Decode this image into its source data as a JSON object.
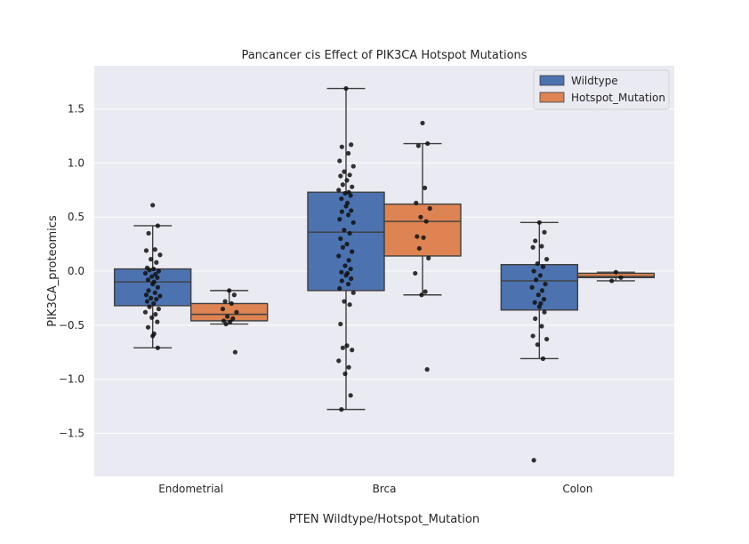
{
  "chart_data": {
    "type": "box",
    "title": "Pancancer cis Effect of PIK3CA Hotspot Mutations",
    "xlabel": "PTEN Wildtype/Hotspot_Mutation",
    "ylabel": "PIK3CA_proteomics",
    "categories": [
      "Endometrial",
      "Brca",
      "Colon"
    ],
    "ylim": [
      -1.9,
      1.9
    ],
    "yticks": [
      -1.5,
      -1.0,
      -0.5,
      0.0,
      0.5,
      1.0,
      1.5
    ],
    "ytick_labels": [
      "−1.5",
      "−1.0",
      "−0.5",
      "0.0",
      "0.5",
      "1.0",
      "1.5"
    ],
    "grid": true,
    "legend_position": "top-right",
    "series": [
      {
        "name": "Wildtype",
        "color": "#4c72b0",
        "boxes": [
          {
            "whisker_low": -0.71,
            "q1": -0.32,
            "median": -0.1,
            "q3": 0.02,
            "whisker_high": 0.42
          },
          {
            "whisker_low": -1.28,
            "q1": -0.18,
            "median": 0.36,
            "q3": 0.73,
            "whisker_high": 1.69
          },
          {
            "whisker_low": -0.81,
            "q1": -0.36,
            "median": -0.09,
            "q3": 0.06,
            "whisker_high": 0.45
          }
        ],
        "points": [
          [
            0.61,
            0.42,
            0.35,
            0.2,
            0.19,
            0.15,
            0.11,
            0.08,
            0.03,
            0.02,
            0.01,
            0.0,
            -0.02,
            -0.03,
            -0.05,
            -0.06,
            -0.08,
            -0.1,
            -0.12,
            -0.15,
            -0.18,
            -0.2,
            -0.22,
            -0.23,
            -0.25,
            -0.26,
            -0.28,
            -0.3,
            -0.33,
            -0.35,
            -0.38,
            -0.4,
            -0.43,
            -0.47,
            -0.52,
            -0.58,
            -0.6,
            -0.71
          ],
          [
            1.69,
            1.17,
            1.15,
            1.09,
            1.02,
            0.97,
            0.92,
            0.89,
            0.88,
            0.84,
            0.8,
            0.78,
            0.75,
            0.73,
            0.72,
            0.7,
            0.67,
            0.63,
            0.6,
            0.56,
            0.55,
            0.52,
            0.48,
            0.45,
            0.38,
            0.35,
            0.3,
            0.25,
            0.22,
            0.18,
            0.14,
            0.1,
            0.05,
            0.02,
            -0.01,
            -0.02,
            -0.04,
            -0.07,
            -0.09,
            -0.12,
            -0.16,
            -0.2,
            -0.28,
            -0.31,
            -0.49,
            -0.69,
            -0.71,
            -0.73,
            -0.83,
            -0.89,
            -0.95,
            -1.15,
            -1.28
          ],
          [
            0.45,
            0.36,
            0.28,
            0.23,
            0.22,
            0.11,
            0.07,
            0.04,
            0.0,
            -0.04,
            -0.08,
            -0.12,
            -0.15,
            -0.18,
            -0.22,
            -0.26,
            -0.29,
            -0.3,
            -0.33,
            -0.38,
            -0.44,
            -0.51,
            -0.6,
            -0.63,
            -0.68,
            -0.81,
            -1.75
          ]
        ]
      },
      {
        "name": "Hotspot_Mutation",
        "color": "#dd8452",
        "boxes": [
          {
            "whisker_low": -0.49,
            "q1": -0.46,
            "median": -0.4,
            "q3": -0.3,
            "whisker_high": -0.18
          },
          {
            "whisker_low": -0.22,
            "q1": 0.14,
            "median": 0.46,
            "q3": 0.62,
            "whisker_high": 1.18
          },
          {
            "whisker_low": -0.09,
            "q1": -0.06,
            "median": -0.05,
            "q3": -0.02,
            "whisker_high": -0.01
          }
        ],
        "points": [
          [
            -0.18,
            -0.22,
            -0.28,
            -0.3,
            -0.35,
            -0.38,
            -0.42,
            -0.44,
            -0.46,
            -0.47,
            -0.49,
            -0.75
          ],
          [
            1.37,
            1.18,
            1.16,
            0.77,
            0.63,
            0.58,
            0.5,
            0.46,
            0.32,
            0.31,
            0.21,
            0.12,
            -0.02,
            -0.19,
            -0.22,
            -0.91
          ],
          [
            -0.01,
            -0.06,
            -0.09
          ]
        ]
      }
    ]
  }
}
